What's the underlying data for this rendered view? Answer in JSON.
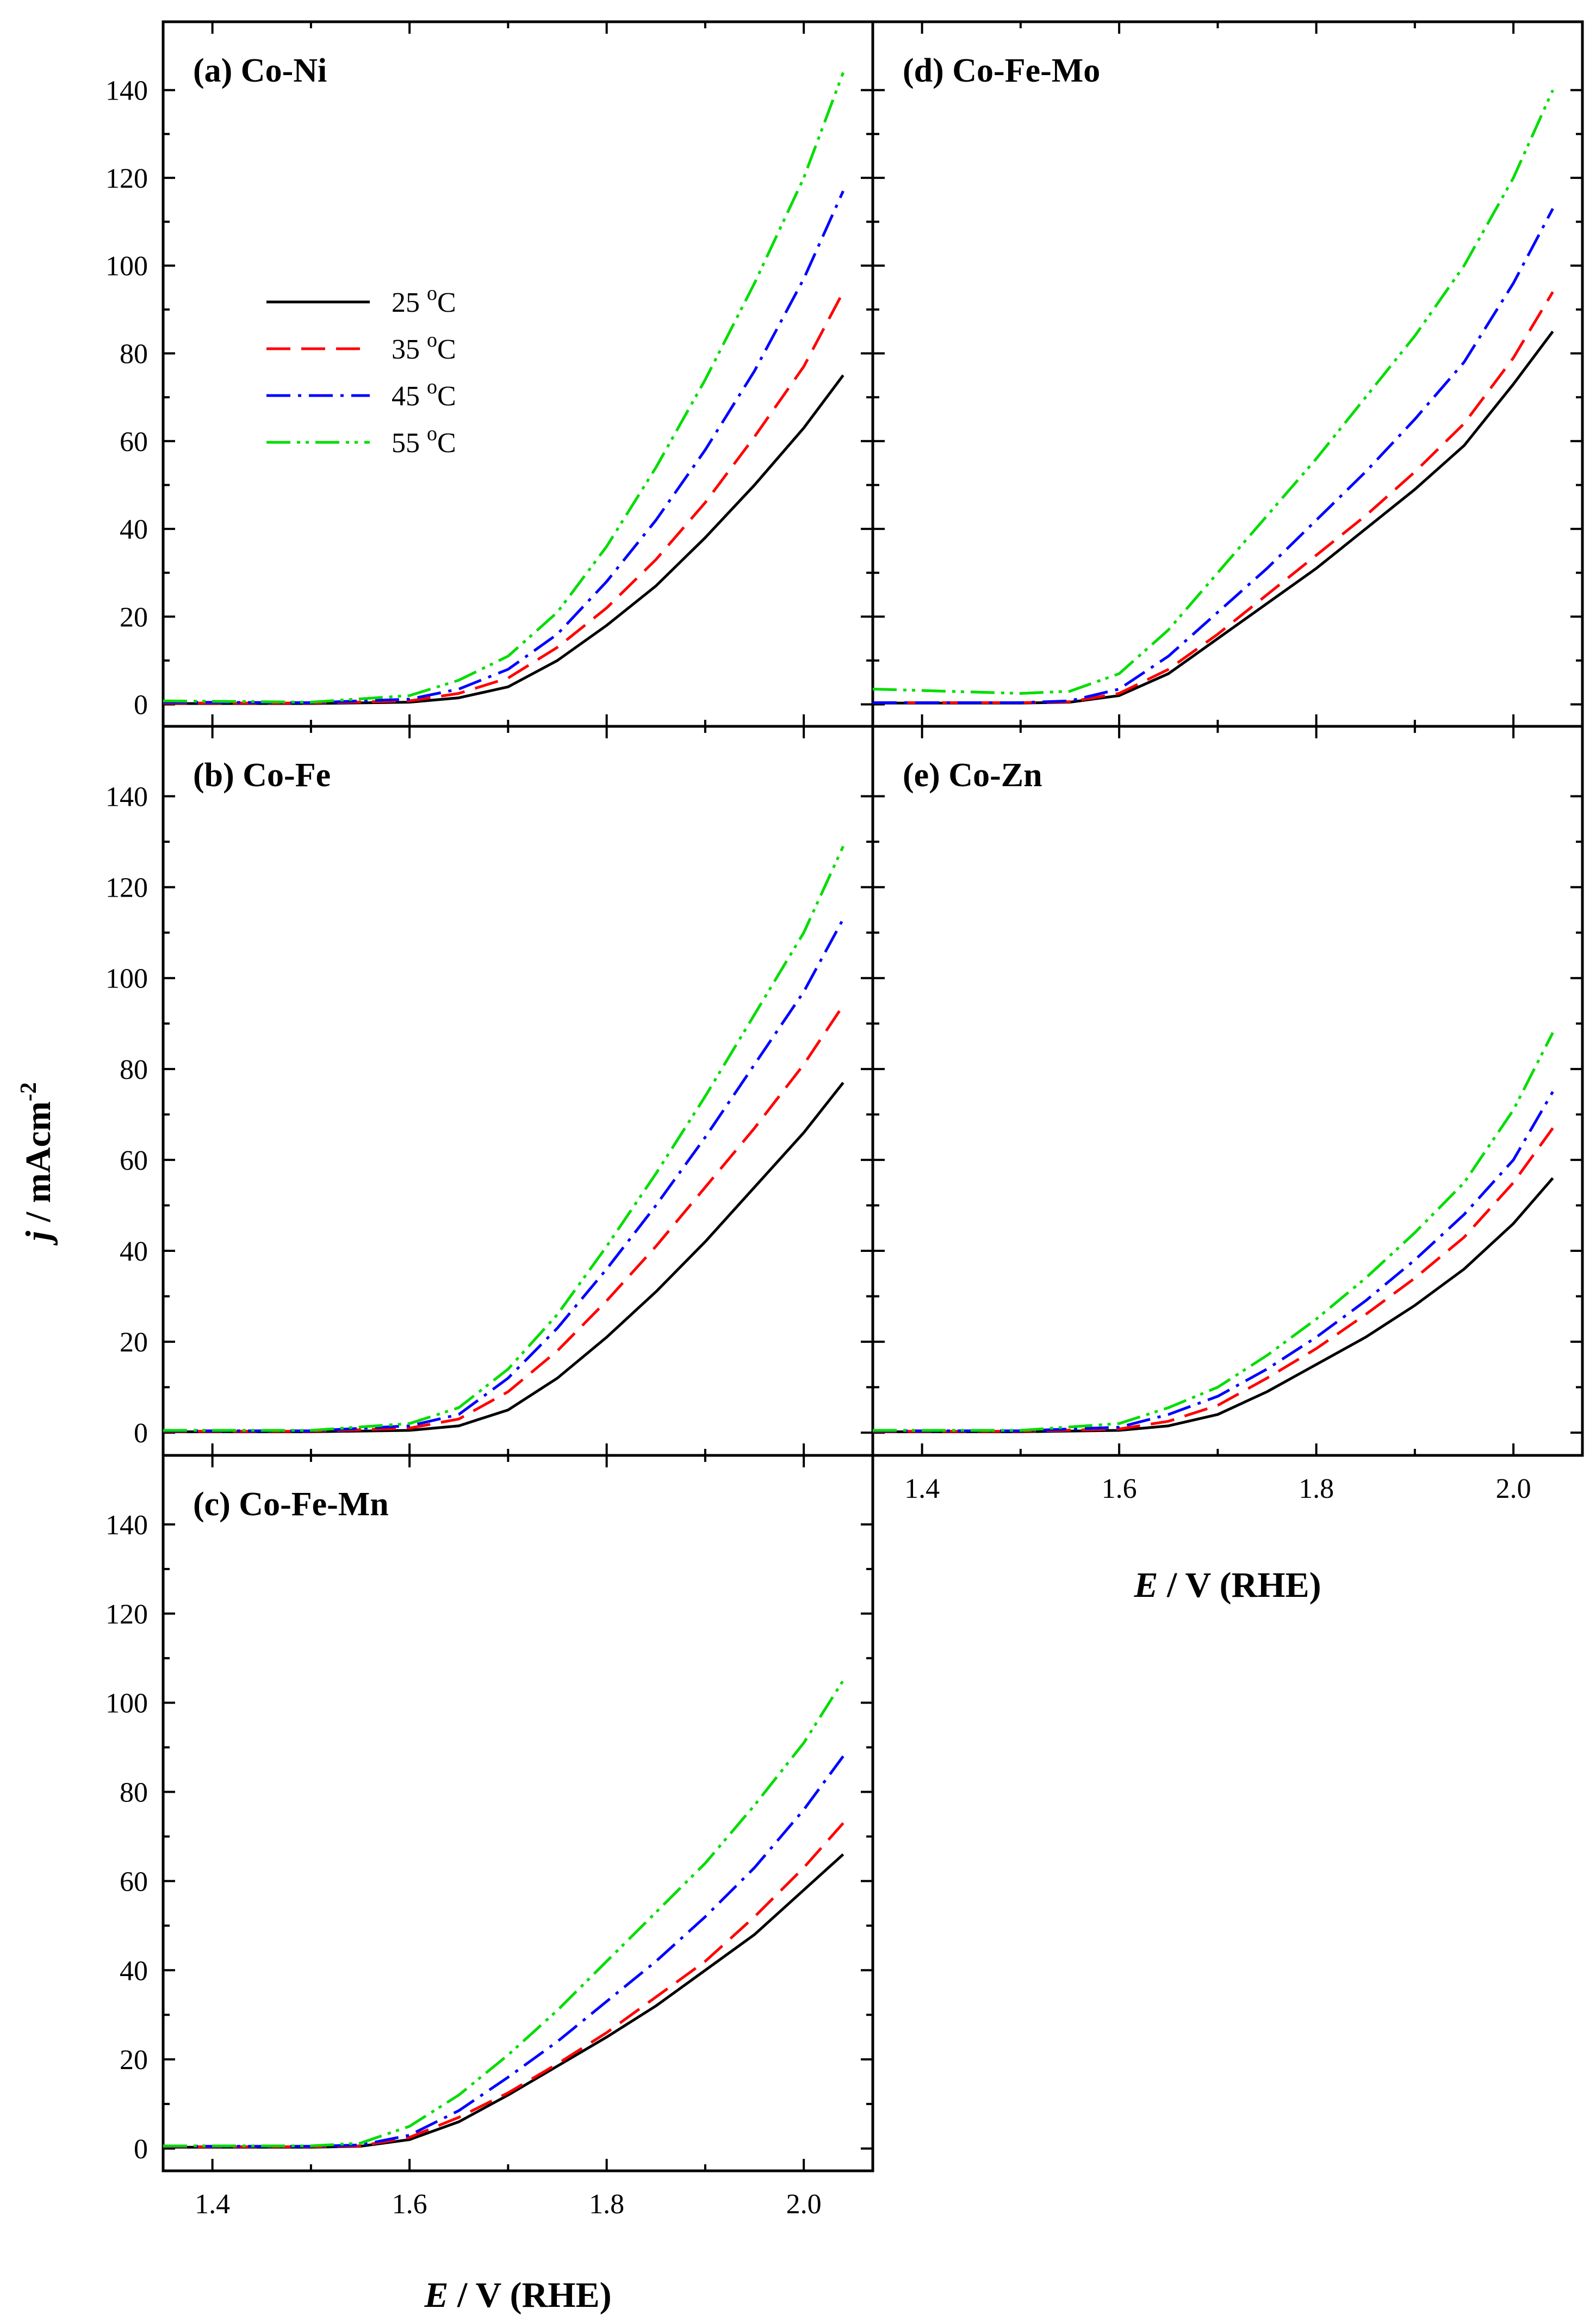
{
  "chart_data": [
    {
      "type": "line",
      "id": "a",
      "panel_label": "(a) Co-Ni",
      "xlim": [
        1.35,
        2.07
      ],
      "ylim": [
        -5,
        150
      ],
      "x_ticks": [
        "1.4",
        "1.6",
        "1.8",
        "2.0"
      ],
      "y_ticks": [
        "0",
        "20",
        "40",
        "60",
        "80",
        "100",
        "120",
        "140"
      ],
      "series": [
        {
          "name": "25 oC",
          "color": "#000000",
          "x": [
            1.35,
            1.5,
            1.6,
            1.65,
            1.7,
            1.75,
            1.8,
            1.85,
            1.9,
            1.95,
            2.0,
            2.04
          ],
          "values": [
            0.2,
            0.2,
            0.5,
            1.5,
            4,
            10,
            18,
            27,
            38,
            50,
            63,
            75
          ]
        },
        {
          "name": "35 oC",
          "color": "#ff0000",
          "x": [
            1.35,
            1.5,
            1.6,
            1.65,
            1.7,
            1.75,
            1.8,
            1.85,
            1.9,
            1.95,
            2.0,
            2.04
          ],
          "values": [
            0.3,
            0.3,
            0.8,
            2.5,
            6,
            13,
            22,
            33,
            46,
            61,
            77,
            94
          ]
        },
        {
          "name": "45 oC",
          "color": "#0000ff",
          "x": [
            1.35,
            1.5,
            1.6,
            1.65,
            1.7,
            1.75,
            1.8,
            1.85,
            1.9,
            1.95,
            2.0,
            2.04
          ],
          "values": [
            0.5,
            0.4,
            1.2,
            3.5,
            8,
            16,
            28,
            42,
            58,
            76,
            97,
            117
          ]
        },
        {
          "name": "55 oC",
          "color": "#00dd00",
          "x": [
            1.35,
            1.5,
            1.6,
            1.65,
            1.7,
            1.75,
            1.8,
            1.85,
            1.9,
            1.95,
            2.0,
            2.04
          ],
          "values": [
            0.8,
            0.5,
            2,
            5.5,
            11,
            21,
            36,
            54,
            74,
            96,
            120,
            144
          ]
        }
      ]
    },
    {
      "type": "line",
      "id": "b",
      "panel_label": "(b) Co-Fe",
      "xlim": [
        1.35,
        2.07
      ],
      "ylim": [
        -5,
        150
      ],
      "x_ticks": [
        "1.4",
        "1.6",
        "1.8",
        "2.0"
      ],
      "y_ticks": [
        "0",
        "20",
        "40",
        "60",
        "80",
        "100",
        "120",
        "140"
      ],
      "series": [
        {
          "name": "25 oC",
          "color": "#000000",
          "x": [
            1.35,
            1.5,
            1.6,
            1.65,
            1.7,
            1.75,
            1.8,
            1.85,
            1.9,
            1.95,
            2.0,
            2.04
          ],
          "values": [
            0.2,
            0.2,
            0.5,
            1.5,
            5,
            12,
            21,
            31,
            42,
            54,
            66,
            77
          ]
        },
        {
          "name": "35 oC",
          "color": "#ff0000",
          "x": [
            1.35,
            1.5,
            1.6,
            1.65,
            1.7,
            1.75,
            1.8,
            1.85,
            1.9,
            1.95,
            2.0,
            2.04
          ],
          "values": [
            0.3,
            0.3,
            1,
            3,
            9,
            18,
            29,
            41,
            54,
            67,
            81,
            94
          ]
        },
        {
          "name": "45 oC",
          "color": "#0000ff",
          "x": [
            1.35,
            1.5,
            1.6,
            1.65,
            1.7,
            1.75,
            1.8,
            1.85,
            1.9,
            1.95,
            2.0,
            2.04
          ],
          "values": [
            0.4,
            0.4,
            1.5,
            4,
            12,
            23,
            36,
            50,
            65,
            81,
            97,
            113
          ]
        },
        {
          "name": "55 oC",
          "color": "#00dd00",
          "x": [
            1.35,
            1.5,
            1.6,
            1.65,
            1.7,
            1.75,
            1.8,
            1.85,
            1.9,
            1.95,
            2.0,
            2.04
          ],
          "values": [
            0.5,
            0.5,
            2,
            5.5,
            14,
            26,
            41,
            57,
            74,
            92,
            110,
            129
          ]
        }
      ]
    },
    {
      "type": "line",
      "id": "c",
      "panel_label": "(c) Co-Fe-Mn",
      "xlim": [
        1.35,
        2.07
      ],
      "ylim": [
        -5,
        150
      ],
      "x_ticks": [
        "1.4",
        "1.6",
        "1.8",
        "2.0"
      ],
      "y_ticks": [
        "0",
        "20",
        "40",
        "60",
        "80",
        "100",
        "120",
        "140"
      ],
      "x_label_italic": "E",
      "x_label_rest": " / V (RHE)",
      "series": [
        {
          "name": "25 oC",
          "color": "#000000",
          "x": [
            1.35,
            1.5,
            1.55,
            1.6,
            1.65,
            1.7,
            1.75,
            1.8,
            1.85,
            1.9,
            1.95,
            2.0,
            2.04
          ],
          "values": [
            0.3,
            0.3,
            0.5,
            2,
            6,
            12,
            18.5,
            25,
            32,
            40,
            48,
            58,
            66
          ]
        },
        {
          "name": "35 oC",
          "color": "#ff0000",
          "x": [
            1.35,
            1.5,
            1.55,
            1.6,
            1.65,
            1.7,
            1.75,
            1.8,
            1.85,
            1.9,
            1.95,
            2.0,
            2.04
          ],
          "values": [
            0.4,
            0.4,
            0.6,
            2.5,
            7,
            12.5,
            19,
            26,
            34,
            42,
            52,
            63,
            73
          ]
        },
        {
          "name": "45 oC",
          "color": "#0000ff",
          "x": [
            1.35,
            1.5,
            1.55,
            1.6,
            1.65,
            1.7,
            1.75,
            1.8,
            1.85,
            1.9,
            1.95,
            2.0,
            2.04
          ],
          "values": [
            0.5,
            0.5,
            0.8,
            3,
            8.5,
            16,
            24,
            33,
            42,
            52,
            63,
            76,
            88
          ]
        },
        {
          "name": "55 oC",
          "color": "#00dd00",
          "x": [
            1.35,
            1.5,
            1.55,
            1.6,
            1.65,
            1.7,
            1.75,
            1.8,
            1.85,
            1.9,
            1.95,
            2.0,
            2.04
          ],
          "values": [
            0.6,
            0.6,
            1.2,
            5,
            12,
            21,
            31,
            42,
            53,
            64,
            77,
            91,
            105
          ]
        }
      ]
    },
    {
      "type": "line",
      "id": "d",
      "panel_label": "(d) Co-Fe-Mo",
      "xlim": [
        1.35,
        2.07
      ],
      "ylim": [
        -5,
        150
      ],
      "x_ticks": [
        "1.4",
        "1.6",
        "1.8",
        "2.0"
      ],
      "y_ticks": [
        "0",
        "20",
        "40",
        "60",
        "80",
        "100",
        "120",
        "140"
      ],
      "series": [
        {
          "name": "25 oC",
          "color": "#000000",
          "x": [
            1.35,
            1.5,
            1.55,
            1.6,
            1.65,
            1.7,
            1.75,
            1.8,
            1.85,
            1.9,
            1.95,
            2.0,
            2.04
          ],
          "values": [
            0.3,
            0.3,
            0.5,
            2,
            7,
            15,
            23,
            31,
            40,
            49,
            59,
            73,
            85
          ]
        },
        {
          "name": "35 oC",
          "color": "#ff0000",
          "x": [
            1.35,
            1.5,
            1.55,
            1.6,
            1.65,
            1.7,
            1.75,
            1.8,
            1.85,
            1.9,
            1.95,
            2.0,
            2.04
          ],
          "values": [
            0.4,
            0.4,
            0.6,
            2.5,
            8,
            16,
            25,
            34,
            43,
            53,
            64,
            79,
            94
          ]
        },
        {
          "name": "45 oC",
          "color": "#0000ff",
          "x": [
            1.35,
            1.5,
            1.55,
            1.6,
            1.65,
            1.7,
            1.75,
            1.8,
            1.85,
            1.9,
            1.95,
            2.0,
            2.04
          ],
          "values": [
            0.4,
            0.4,
            0.8,
            3.5,
            11,
            21,
            31,
            42,
            53,
            65,
            78,
            96,
            113
          ]
        },
        {
          "name": "55 oC",
          "color": "#00dd00",
          "x": [
            1.35,
            1.5,
            1.55,
            1.6,
            1.65,
            1.7,
            1.75,
            1.8,
            1.85,
            1.9,
            1.95,
            2.0,
            2.04
          ],
          "values": [
            3.5,
            2.5,
            3,
            7,
            17,
            30,
            43,
            56,
            70,
            84,
            100,
            120,
            140
          ]
        }
      ]
    },
    {
      "type": "line",
      "id": "e",
      "panel_label": "(e) Co-Zn",
      "xlim": [
        1.35,
        2.07
      ],
      "ylim": [
        -5,
        150
      ],
      "x_ticks": [
        "1.4",
        "1.6",
        "1.8",
        "2.0"
      ],
      "y_ticks": [],
      "x_label_italic": "E",
      "x_label_rest": " / V (RHE)",
      "series": [
        {
          "name": "25 oC",
          "color": "#000000",
          "x": [
            1.35,
            1.5,
            1.6,
            1.65,
            1.7,
            1.75,
            1.8,
            1.85,
            1.9,
            1.95,
            2.0,
            2.04
          ],
          "values": [
            0.2,
            0.2,
            0.5,
            1.5,
            4,
            9,
            15,
            21,
            28,
            36,
            46,
            56
          ]
        },
        {
          "name": "35 oC",
          "color": "#ff0000",
          "x": [
            1.35,
            1.5,
            1.6,
            1.65,
            1.7,
            1.75,
            1.8,
            1.85,
            1.9,
            1.95,
            2.0,
            2.04
          ],
          "values": [
            0.3,
            0.3,
            0.8,
            2.5,
            6,
            12,
            18.5,
            26,
            34,
            43,
            55,
            67
          ]
        },
        {
          "name": "45 oC",
          "color": "#0000ff",
          "x": [
            1.35,
            1.5,
            1.6,
            1.65,
            1.7,
            1.75,
            1.8,
            1.85,
            1.9,
            1.95,
            2.0,
            2.04
          ],
          "values": [
            0.4,
            0.4,
            1.2,
            4,
            8,
            14,
            21,
            29,
            38,
            48,
            60,
            75
          ]
        },
        {
          "name": "55 oC",
          "color": "#00dd00",
          "x": [
            1.35,
            1.5,
            1.6,
            1.65,
            1.7,
            1.75,
            1.8,
            1.85,
            1.9,
            1.95,
            2.0,
            2.04
          ],
          "values": [
            0.5,
            0.5,
            2,
            5.5,
            10,
            17,
            25,
            34,
            44,
            55,
            71,
            88
          ]
        }
      ]
    }
  ],
  "y_axis_label": {
    "italic": "j",
    "rest": " / mAcm",
    "superscript": "-2"
  },
  "legend": {
    "items": [
      {
        "value": "25",
        "superscript": "o",
        "unit": "C",
        "color": "#000000",
        "dash": ""
      },
      {
        "value": "35",
        "superscript": "o",
        "unit": "C",
        "color": "#ff0000",
        "dash": "44 20"
      },
      {
        "value": "45",
        "superscript": "o",
        "unit": "C",
        "color": "#0000ff",
        "dash": "44 14 6 14"
      },
      {
        "value": "55",
        "superscript": "o",
        "unit": "C",
        "color": "#00dd00",
        "dash": "44 12 6 10 6 12"
      }
    ]
  }
}
